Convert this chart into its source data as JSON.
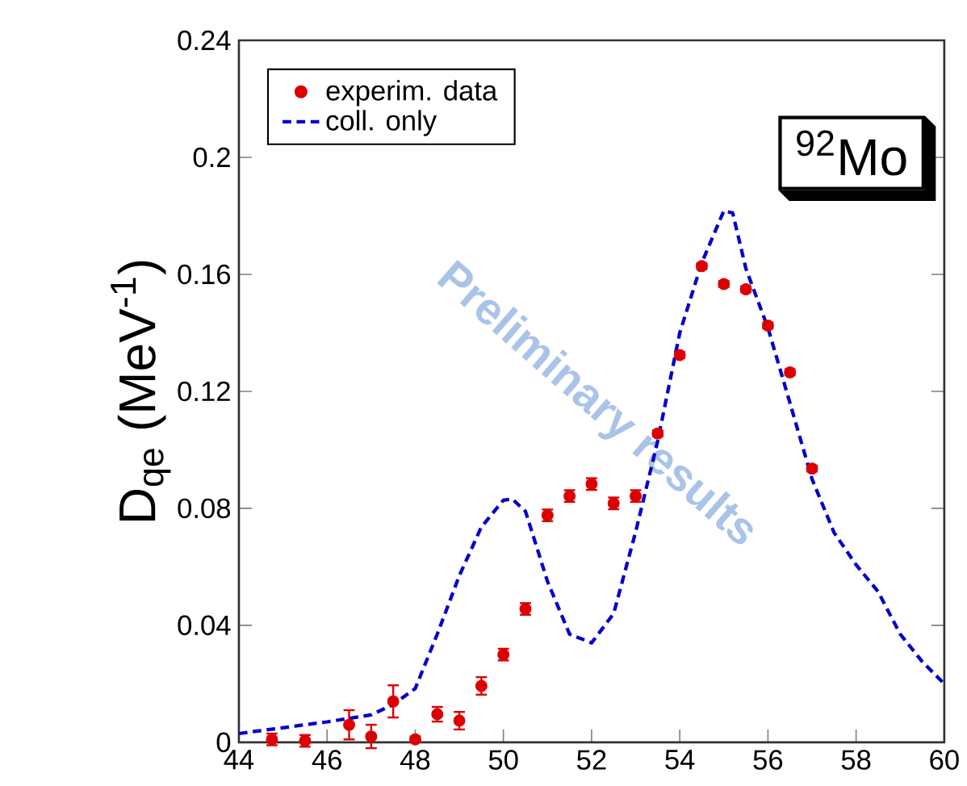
{
  "chart_data": {
    "type": "scatter",
    "ylabel": "D$_{qe}$ (MeV$^{-1}$)",
    "xlim": [
      44,
      60
    ],
    "xticks": [
      44,
      46,
      48,
      50,
      52,
      54,
      56,
      58,
      60
    ],
    "ylim": [
      0,
      0.24
    ],
    "yticks": [
      0,
      0.04,
      0.08,
      0.12,
      0.16,
      0.2,
      0.24
    ],
    "legend": "top left",
    "grid": false,
    "annotations": [
      "$^{92}$Mo",
      "Preliminary results"
    ],
    "series": [
      {
        "name": "experim. data",
        "color": "#dd0000",
        "marker": "circle",
        "x": [
          44.75,
          45.5,
          46.5,
          47,
          47.5,
          48,
          48.5,
          49,
          49.5,
          50,
          50.5,
          51,
          51.5,
          52,
          52.5,
          53,
          53.5,
          54,
          54.5,
          55,
          55.5,
          56,
          56.5,
          57
        ],
        "values": [
          0.001,
          0.0005,
          0.006,
          0.002,
          0.014,
          0.001,
          0.0096,
          0.0074,
          0.0193,
          0.03,
          0.0456,
          0.0776,
          0.0842,
          0.0883,
          0.0817,
          0.0842,
          0.1056,
          0.1324,
          0.1628,
          0.1567,
          0.1549,
          0.1425,
          0.1265,
          0.0936
        ],
        "errors": [
          0.002,
          0.002,
          0.005,
          0.004,
          0.0055,
          0.001,
          0.0025,
          0.003,
          0.003,
          0.002,
          0.002,
          0.002,
          0.002,
          0.002,
          0.002,
          0.002,
          0.001,
          0.001,
          0.001,
          0.001,
          0.001,
          0.001,
          0.001,
          0.001
        ]
      },
      {
        "name": "coll. only",
        "type": "line",
        "color": "#0000cc",
        "line_style": "dashed",
        "marker": "none",
        "x": [
          44,
          45,
          46,
          47,
          47.5,
          48,
          48.5,
          49,
          49.5,
          50,
          50.2,
          50.5,
          51,
          51.5,
          52,
          52.5,
          53,
          53.5,
          54,
          54.5,
          55,
          55.2,
          55.5,
          56,
          56.5,
          57,
          57.5,
          58,
          58.5,
          59,
          59.5,
          60
        ],
        "values": [
          0.003,
          0.005,
          0.007,
          0.0094,
          0.0129,
          0.0184,
          0.037,
          0.057,
          0.0736,
          0.0828,
          0.0832,
          0.079,
          0.055,
          0.037,
          0.034,
          0.044,
          0.072,
          0.103,
          0.14,
          0.164,
          0.1817,
          0.181,
          0.162,
          0.1417,
          0.116,
          0.09,
          0.0717,
          0.0607,
          0.0515,
          0.037,
          0.0276,
          0.02
        ]
      }
    ]
  }
}
